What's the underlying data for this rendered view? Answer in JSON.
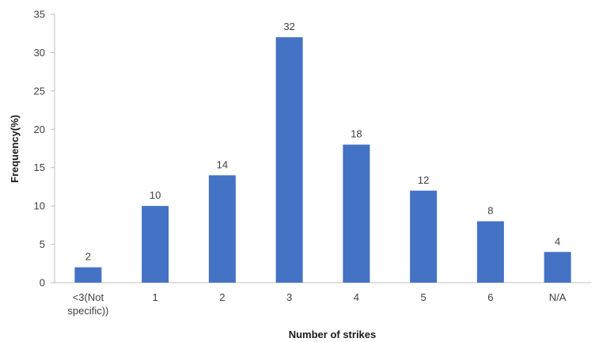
{
  "chart_data": {
    "type": "bar",
    "categories": [
      "<3(Not specific))",
      "1",
      "2",
      "3",
      "4",
      "5",
      "6",
      "N/A"
    ],
    "category_lines": [
      [
        "<3(Not",
        "specific))"
      ],
      [
        "1"
      ],
      [
        "2"
      ],
      [
        "3"
      ],
      [
        "4"
      ],
      [
        "5"
      ],
      [
        "6"
      ],
      [
        "N/A"
      ]
    ],
    "values": [
      2,
      10,
      14,
      32,
      18,
      12,
      8,
      4
    ],
    "data_labels": [
      "2",
      "10",
      "14",
      "32",
      "18",
      "12",
      "8",
      "4"
    ],
    "title": "",
    "xlabel": "Number of strikes",
    "ylabel": "Frequency(%)",
    "ylim": [
      0,
      35
    ],
    "yticks": [
      "0",
      "5",
      "10",
      "15",
      "20",
      "25",
      "30",
      "35"
    ],
    "grid": false,
    "legend": "none",
    "bar_color": "#4472C4"
  }
}
